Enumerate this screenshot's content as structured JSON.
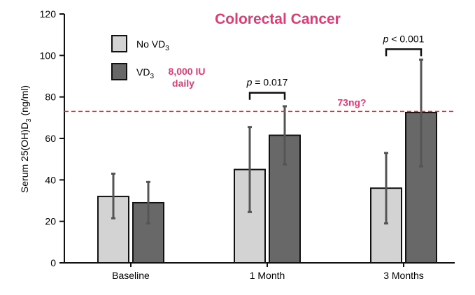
{
  "chart_data": {
    "type": "bar",
    "title": "Colorectal  Cancer",
    "ylabel": "Serum 25(OH)D3 (ng/ml)",
    "ylabel_parts": {
      "a": "Serum 25(OH)D",
      "sub": "3",
      "b": " (ng/ml)"
    },
    "xlabel": "",
    "ylim": [
      0,
      120
    ],
    "yticks": [
      0,
      20,
      40,
      60,
      80,
      100,
      120
    ],
    "categories": [
      "Baseline",
      "1 Month",
      "3 Months"
    ],
    "series": [
      {
        "name": "No VD3",
        "legend_main": "No VD",
        "legend_sub": "3",
        "values": [
          32,
          45,
          36
        ],
        "err_low": [
          21.5,
          24.5,
          19
        ],
        "err_high": [
          43,
          65.5,
          53
        ]
      },
      {
        "name": "VD3",
        "legend_main": "VD",
        "legend_sub": "3",
        "values": [
          29,
          61.5,
          72.5
        ],
        "err_low": [
          19,
          47.5,
          46.5
        ],
        "err_high": [
          39,
          75.5,
          98
        ]
      }
    ],
    "dose_note_line1": "8,000 IU",
    "dose_note_line2": "daily",
    "reference_line": {
      "value": 73,
      "label": "73ng?"
    },
    "significance": [
      {
        "category": "1 Month",
        "p_symbol": "p",
        "p_text": " = 0.017",
        "bracket_y": 82
      },
      {
        "category": "3 Months",
        "p_symbol": "p",
        "p_text": " < 0.001",
        "bracket_y": 103
      }
    ]
  },
  "colors": {
    "no_vd3_fill": "#d3d3d3",
    "vd3_fill": "#686868",
    "bar_stroke": "#111111",
    "error_bar": "#555555",
    "accent": "#e23a73",
    "reference": "#e8322f",
    "axis": "#111111"
  }
}
